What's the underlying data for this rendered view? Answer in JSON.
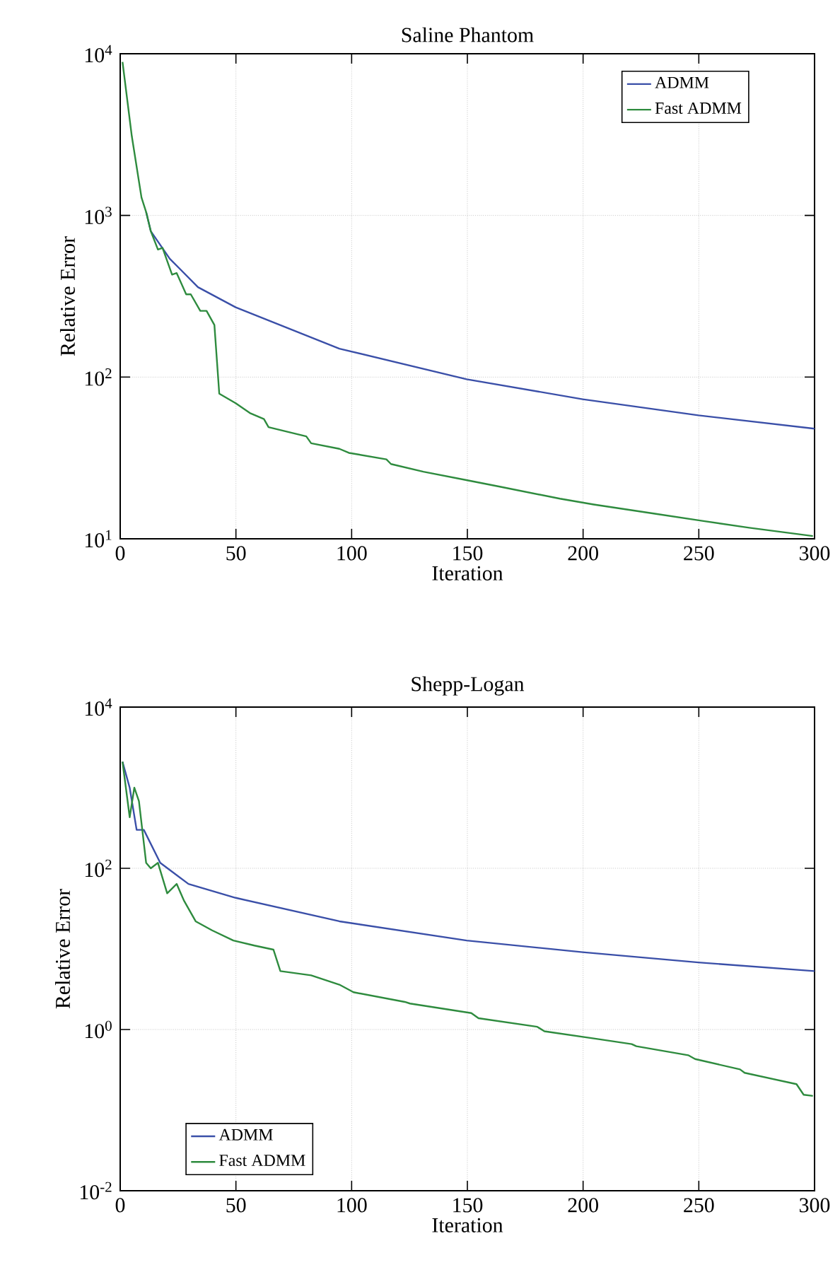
{
  "chart_data": [
    {
      "type": "line",
      "title": "Saline Phantom",
      "xlabel": "Iteration",
      "ylabel": "Relative Error",
      "log": "y",
      "grid": true,
      "legend": "top right",
      "xlim": [
        0,
        300
      ],
      "xticks": [
        0,
        50,
        100,
        150,
        200,
        250,
        300
      ],
      "ylim": [
        10,
        10000
      ],
      "yticks": [
        {
          "value": 10,
          "label": "10$^{1}$"
        },
        {
          "value": 100,
          "label": "10$^{2}$"
        },
        {
          "value": 1000,
          "label": "10$^{3}$"
        },
        {
          "value": 10000,
          "label": "10$^{4}$"
        }
      ],
      "series": [
        {
          "name": "ADMM",
          "color": "#3a4fa8",
          "x": [
            11.2,
            13.2,
            21.4,
            33.6,
            49.9,
            94.7,
            149.7,
            199.8,
            249.8,
            300
          ],
          "values": [
            1050,
            800,
            540,
            360,
            270,
            150,
            97,
            73,
            58,
            48
          ]
        },
        {
          "name": "Fast ADMM",
          "color": "#2e8b3e",
          "x": [
            1,
            5,
            9.2,
            11.2,
            13.2,
            16.3,
            18.3,
            22.4,
            24.4,
            28.5,
            30.5,
            34.6,
            37.3,
            40.7,
            42.8,
            49.9,
            56,
            62.1,
            64.1,
            80.4,
            82.5,
            94.7,
            98.8,
            115,
            117,
            131,
            150,
            164,
            190,
            204.6,
            231,
            251.5,
            271.8,
            299.3
          ],
          "values": [
            8900,
            3100,
            1290,
            1050,
            800,
            615,
            630,
            430,
            440,
            325,
            325,
            257,
            257,
            210,
            79,
            69,
            60,
            55,
            49,
            43,
            39,
            36,
            34,
            31,
            29,
            26,
            23,
            21,
            17.7,
            16.3,
            14.3,
            12.9,
            11.7,
            10.4
          ]
        }
      ]
    },
    {
      "type": "line",
      "title": "Shepp-Logan",
      "xlabel": "Iteration",
      "ylabel": "Relative Error",
      "log": "y",
      "grid": true,
      "legend": "bottom left",
      "xlim": [
        0,
        300
      ],
      "xticks": [
        0,
        50,
        100,
        150,
        200,
        250,
        300
      ],
      "ylim": [
        0.01,
        10000
      ],
      "yticks": [
        {
          "value": 0.01,
          "label": "10$^{-2}$"
        },
        {
          "value": 1,
          "label": "10$^{0}$"
        },
        {
          "value": 100,
          "label": "10$^{2}$"
        },
        {
          "value": 10000,
          "label": "10$^{4}$"
        }
      ],
      "series": [
        {
          "name": "ADMM",
          "color": "#3a4fa8",
          "x": [
            1,
            4.1,
            7.1,
            10.2,
            17.3,
            29.5,
            49.9,
            94.7,
            149.7,
            199.8,
            249.8,
            300
          ],
          "values": [
            2100,
            1000,
            300,
            300,
            117,
            64,
            43,
            22,
            12.7,
            9.1,
            6.8,
            5.3
          ]
        },
        {
          "name": "Fast ADMM",
          "color": "#2e8b3e",
          "x": [
            1,
            4.1,
            6.1,
            8.1,
            11.2,
            13.2,
            16.3,
            20.3,
            24.4,
            27.5,
            32.6,
            39.7,
            48.9,
            58,
            66.2,
            69.2,
            82.5,
            94.7,
            100.8,
            123,
            125.2,
            151.7,
            154.8,
            180.2,
            183.3,
            206.7,
            221,
            223,
            245.4,
            248.4,
            267.8,
            269.8,
            292.2,
            295.3,
            299.3
          ],
          "values": [
            2100,
            430,
            1000,
            680,
            117,
            100,
            117,
            49,
            64,
            40,
            22,
            17,
            12.7,
            11,
            9.8,
            5.3,
            4.7,
            3.6,
            2.9,
            2.2,
            2.1,
            1.6,
            1.38,
            1.08,
            0.95,
            0.76,
            0.66,
            0.62,
            0.48,
            0.43,
            0.32,
            0.29,
            0.21,
            0.155,
            0.15
          ]
        }
      ]
    }
  ]
}
